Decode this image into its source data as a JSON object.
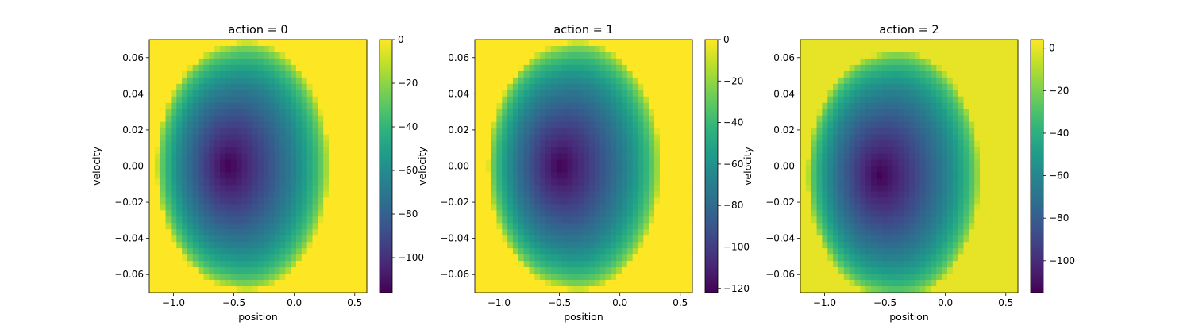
{
  "chart_data": [
    {
      "type": "heatmap",
      "title": "action = 0",
      "xlabel": "position",
      "ylabel": "velocity",
      "xlim": [
        -1.2,
        0.6
      ],
      "ylim": [
        -0.07,
        0.07
      ],
      "xticks": [
        -1.0,
        -0.5,
        0.0,
        0.5
      ],
      "xtick_labels": [
        "−1.0",
        "−0.5",
        "0.0",
        "0.5"
      ],
      "yticks": [
        -0.06,
        -0.04,
        -0.02,
        0.0,
        0.02,
        0.04,
        0.06
      ],
      "ytick_labels": [
        "−0.06",
        "−0.04",
        "−0.02",
        "0.00",
        "0.02",
        "0.04",
        "0.06"
      ],
      "colormap": "viridis",
      "colorbar": {
        "min": -116,
        "max": 0,
        "ticks": [
          0,
          -20,
          -40,
          -60,
          -80,
          -100
        ],
        "tick_labels": [
          "0",
          "−20",
          "−40",
          "−60",
          "−80",
          "−100"
        ]
      },
      "minimum": {
        "position": -0.55,
        "velocity": 0.0,
        "value": -116
      },
      "grid": false
    },
    {
      "type": "heatmap",
      "title": "action = 1",
      "xlabel": "position",
      "ylabel": "velocity",
      "xlim": [
        -1.2,
        0.6
      ],
      "ylim": [
        -0.07,
        0.07
      ],
      "xticks": [
        -1.0,
        -0.5,
        0.0,
        0.5
      ],
      "xtick_labels": [
        "−1.0",
        "−0.5",
        "0.0",
        "0.5"
      ],
      "yticks": [
        -0.06,
        -0.04,
        -0.02,
        0.0,
        0.02,
        0.04,
        0.06
      ],
      "ytick_labels": [
        "−0.06",
        "−0.04",
        "−0.02",
        "0.00",
        "0.02",
        "0.04",
        "0.06"
      ],
      "colormap": "viridis",
      "colorbar": {
        "min": -122,
        "max": 0,
        "ticks": [
          0,
          -20,
          -40,
          -60,
          -80,
          -100,
          -120
        ],
        "tick_labels": [
          "0",
          "−20",
          "−40",
          "−60",
          "−80",
          "−100",
          "−120"
        ]
      },
      "minimum": {
        "position": -0.5,
        "velocity": 0.0,
        "value": -122
      },
      "grid": false
    },
    {
      "type": "heatmap",
      "title": "action = 2",
      "xlabel": "position",
      "ylabel": "velocity",
      "xlim": [
        -1.2,
        0.6
      ],
      "ylim": [
        -0.07,
        0.07
      ],
      "xticks": [
        -1.0,
        -0.5,
        0.0,
        0.5
      ],
      "xtick_labels": [
        "−1.0",
        "−0.5",
        "0.0",
        "0.5"
      ],
      "yticks": [
        -0.06,
        -0.04,
        -0.02,
        0.0,
        0.02,
        0.04,
        0.06
      ],
      "ytick_labels": [
        "−0.06",
        "−0.04",
        "−0.02",
        "0.00",
        "0.02",
        "0.04",
        "0.06"
      ],
      "colormap": "viridis",
      "colorbar": {
        "min": -115,
        "max": 4,
        "ticks": [
          0,
          -20,
          -40,
          -60,
          -80,
          -100
        ],
        "tick_labels": [
          "0",
          "−20",
          "−40",
          "−60",
          "−80",
          "−100"
        ]
      },
      "minimum": {
        "position": -0.55,
        "velocity": -0.005,
        "value": -115
      },
      "grid": false
    }
  ]
}
